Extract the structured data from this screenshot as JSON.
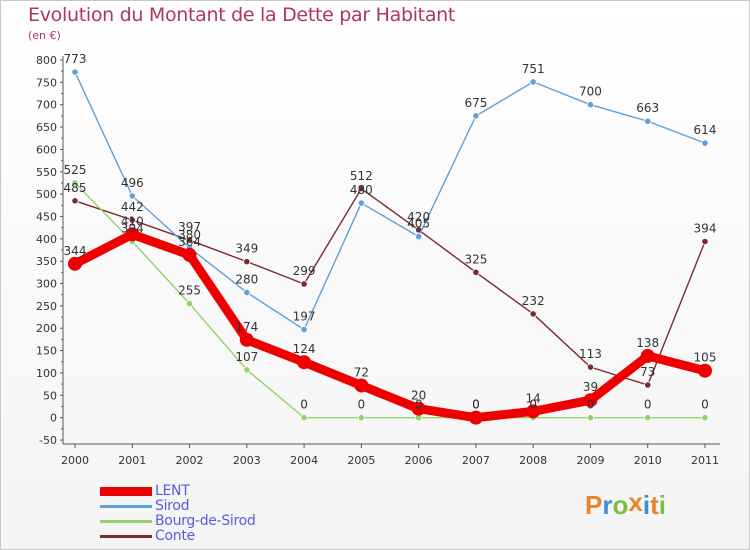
{
  "title": "Evolution du Montant de la Dette par Habitant",
  "unit": "(en €)",
  "brand": {
    "letters": [
      "P",
      "r",
      "o",
      "x",
      "i",
      "t",
      "i"
    ],
    "colors": [
      "#e8852a",
      "#3c8fd0",
      "#7bbf3a",
      "#e8852a",
      "#3c8fd0",
      "#e8852a",
      "#7bbf3a"
    ]
  },
  "chart_data": {
    "type": "line",
    "title": "Evolution du Montant de la Dette par Habitant",
    "ylabel": "(en €)",
    "xlabel": "",
    "x": [
      "2000",
      "2001",
      "2002",
      "2003",
      "2004",
      "2005",
      "2006",
      "2007",
      "2008",
      "2009",
      "2010",
      "2011"
    ],
    "ylim": [
      -50,
      800
    ],
    "yticks": [
      -50,
      0,
      50,
      100,
      150,
      200,
      250,
      300,
      350,
      400,
      450,
      500,
      550,
      600,
      650,
      700,
      750,
      800
    ],
    "grid": false,
    "legend": "bottom-left",
    "series": [
      {
        "name": "Conte",
        "color": "#7a2a30",
        "values": [
          485,
          442,
          397,
          349,
          299,
          512,
          420,
          325,
          232,
          113,
          73,
          394
        ],
        "labels": [
          "485",
          "442",
          "397",
          "349",
          "299",
          "512",
          "420",
          "325",
          "232",
          "113",
          "73",
          "394"
        ]
      },
      {
        "name": "Bourg-de-Sirod",
        "color": "#8fd36a",
        "values": [
          525,
          394,
          255,
          107,
          0,
          0,
          0,
          0,
          0,
          0,
          0,
          0
        ],
        "labels": [
          "525",
          "394",
          "255",
          "107",
          "0",
          "0",
          "0",
          "0",
          "0",
          "0",
          "0",
          "0"
        ]
      },
      {
        "name": "Sirod",
        "color": "#5ea0d8",
        "values": [
          773,
          496,
          380,
          280,
          197,
          480,
          405,
          675,
          751,
          700,
          663,
          614
        ],
        "labels": [
          "773",
          "496",
          "380",
          "280",
          "197",
          "480",
          "405",
          "675",
          "751",
          "700",
          "663",
          "614"
        ]
      },
      {
        "name": "LENT",
        "color": "#ee0000",
        "values": [
          344,
          410,
          364,
          174,
          124,
          72,
          20,
          0,
          14,
          39,
          138,
          105
        ],
        "labels": [
          "344",
          "410",
          "364",
          "174",
          "124",
          "72",
          "20",
          "0",
          "14",
          "39",
          "138",
          "105"
        ]
      }
    ],
    "legend_order": [
      "LENT",
      "Sirod",
      "Bourg-de-Sirod",
      "Conte"
    ]
  }
}
